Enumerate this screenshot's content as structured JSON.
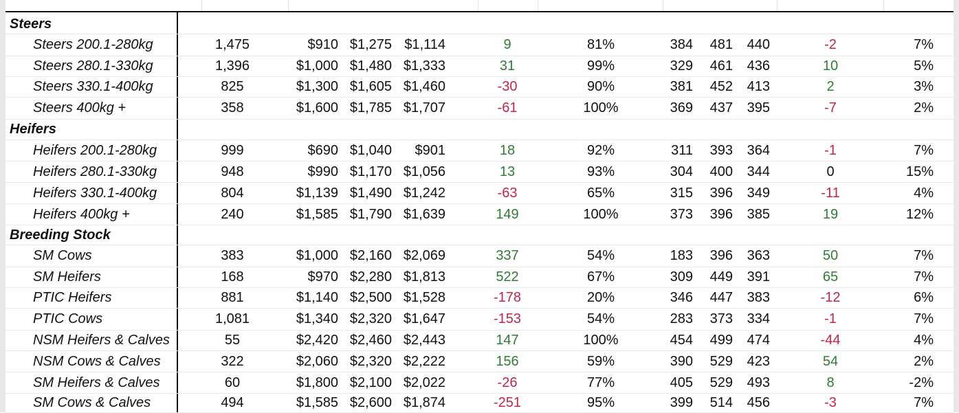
{
  "colors": {
    "positive": "#2e7d32",
    "negative": "#c0264a",
    "neutral": "#111111"
  },
  "rows": [
    {
      "section": "Steers"
    },
    {
      "label": "Steers 200.1-280kg",
      "head": "1,475",
      "min": "$910",
      "max": "$1,275",
      "avg": "$1,114",
      "chg": "9",
      "chg_dir": "pos",
      "pct": "81%",
      "c_min": "384",
      "c_max": "481",
      "c_avg": "440",
      "c_chg": "-2",
      "c_chg_dir": "neg",
      "pc": "7%"
    },
    {
      "label": "Steers 280.1-330kg",
      "head": "1,396",
      "min": "$1,000",
      "max": "$1,480",
      "avg": "$1,333",
      "chg": "31",
      "chg_dir": "pos",
      "pct": "99%",
      "c_min": "329",
      "c_max": "461",
      "c_avg": "436",
      "c_chg": "10",
      "c_chg_dir": "pos",
      "pc": "5%"
    },
    {
      "label": "Steers 330.1-400kg",
      "head": "825",
      "min": "$1,300",
      "max": "$1,605",
      "avg": "$1,460",
      "chg": "-30",
      "chg_dir": "neg",
      "pct": "90%",
      "c_min": "381",
      "c_max": "452",
      "c_avg": "413",
      "c_chg": "2",
      "c_chg_dir": "pos",
      "pc": "3%"
    },
    {
      "label": "Steers 400kg +",
      "head": "358",
      "min": "$1,600",
      "max": "$1,785",
      "avg": "$1,707",
      "chg": "-61",
      "chg_dir": "neg",
      "pct": "100%",
      "c_min": "369",
      "c_max": "437",
      "c_avg": "395",
      "c_chg": "-7",
      "c_chg_dir": "neg",
      "pc": "2%"
    },
    {
      "section": "Heifers"
    },
    {
      "label": "Heifers 200.1-280kg",
      "head": "999",
      "min": "$690",
      "max": "$1,040",
      "avg": "$901",
      "chg": "18",
      "chg_dir": "pos",
      "pct": "92%",
      "c_min": "311",
      "c_max": "393",
      "c_avg": "364",
      "c_chg": "-1",
      "c_chg_dir": "neg",
      "pc": "7%"
    },
    {
      "label": "Heifers 280.1-330kg",
      "head": "948",
      "min": "$990",
      "max": "$1,170",
      "avg": "$1,056",
      "chg": "13",
      "chg_dir": "pos",
      "pct": "93%",
      "c_min": "304",
      "c_max": "400",
      "c_avg": "344",
      "c_chg": "0",
      "c_chg_dir": "neu",
      "pc": "15%"
    },
    {
      "label": "Heifers 330.1-400kg",
      "head": "804",
      "min": "$1,139",
      "max": "$1,490",
      "avg": "$1,242",
      "chg": "-63",
      "chg_dir": "neg",
      "pct": "65%",
      "c_min": "315",
      "c_max": "396",
      "c_avg": "349",
      "c_chg": "-11",
      "c_chg_dir": "neg",
      "pc": "4%"
    },
    {
      "label": "Heifers 400kg +",
      "head": "240",
      "min": "$1,585",
      "max": "$1,790",
      "avg": "$1,639",
      "chg": "149",
      "chg_dir": "pos",
      "pct": "100%",
      "c_min": "373",
      "c_max": "396",
      "c_avg": "385",
      "c_chg": "19",
      "c_chg_dir": "pos",
      "pc": "12%"
    },
    {
      "section": "Breeding Stock"
    },
    {
      "label": "SM Cows",
      "head": "383",
      "min": "$1,000",
      "max": "$2,160",
      "avg": "$2,069",
      "chg": "337",
      "chg_dir": "pos",
      "pct": "54%",
      "c_min": "183",
      "c_max": "396",
      "c_avg": "363",
      "c_chg": "50",
      "c_chg_dir": "pos",
      "pc": "7%"
    },
    {
      "label": "SM Heifers",
      "head": "168",
      "min": "$970",
      "max": "$2,280",
      "avg": "$1,813",
      "chg": "522",
      "chg_dir": "pos",
      "pct": "67%",
      "c_min": "309",
      "c_max": "449",
      "c_avg": "391",
      "c_chg": "65",
      "c_chg_dir": "pos",
      "pc": "7%"
    },
    {
      "label": "PTIC Heifers",
      "head": "881",
      "min": "$1,140",
      "max": "$2,500",
      "avg": "$1,528",
      "chg": "-178",
      "chg_dir": "neg",
      "pct": "20%",
      "c_min": "346",
      "c_max": "447",
      "c_avg": "383",
      "c_chg": "-12",
      "c_chg_dir": "neg",
      "pc": "6%"
    },
    {
      "label": "PTIC Cows",
      "head": "1,081",
      "min": "$1,340",
      "max": "$2,320",
      "avg": "$1,647",
      "chg": "-153",
      "chg_dir": "neg",
      "pct": "54%",
      "c_min": "283",
      "c_max": "373",
      "c_avg": "334",
      "c_chg": "-1",
      "c_chg_dir": "neg",
      "pc": "7%"
    },
    {
      "label": "NSM Heifers & Calves",
      "head": "55",
      "min": "$2,420",
      "max": "$2,460",
      "avg": "$2,443",
      "chg": "147",
      "chg_dir": "pos",
      "pct": "100%",
      "c_min": "454",
      "c_max": "499",
      "c_avg": "474",
      "c_chg": "-44",
      "c_chg_dir": "neg",
      "pc": "4%"
    },
    {
      "label": "NSM Cows & Calves",
      "head": "322",
      "min": "$2,060",
      "max": "$2,320",
      "avg": "$2,222",
      "chg": "156",
      "chg_dir": "pos",
      "pct": "59%",
      "c_min": "390",
      "c_max": "529",
      "c_avg": "423",
      "c_chg": "54",
      "c_chg_dir": "pos",
      "pc": "2%"
    },
    {
      "label": "SM Heifers & Calves",
      "head": "60",
      "min": "$1,800",
      "max": "$2,100",
      "avg": "$2,022",
      "chg": "-26",
      "chg_dir": "neg",
      "pct": "77%",
      "c_min": "405",
      "c_max": "529",
      "c_avg": "493",
      "c_chg": "8",
      "c_chg_dir": "pos",
      "pc": "-2%"
    },
    {
      "label": "SM Cows & Calves",
      "head": "494",
      "min": "$1,585",
      "max": "$2,600",
      "avg": "$1,874",
      "chg": "-251",
      "chg_dir": "neg",
      "pct": "95%",
      "c_min": "399",
      "c_max": "514",
      "c_avg": "456",
      "c_chg": "-3",
      "c_chg_dir": "neg",
      "pc": "7%"
    }
  ]
}
